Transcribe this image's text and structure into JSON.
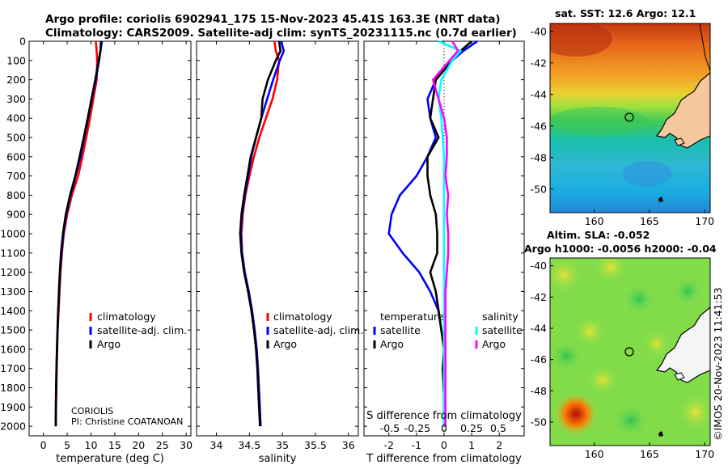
{
  "header": {
    "title_line1": "Argo profile: coriolis 6902941_175 15-Nov-2023 45.41S 163.3E (NRT data)",
    "title_line2": "Climatology: CARS2009. Satellite-adj clim: synTS_20231115.nc (0.7d earlier)"
  },
  "map_sst": {
    "title": "sat. SST: 12.6 Argo: 12.1"
  },
  "map_sla": {
    "title_line1": "Altim. SLA: -0.052",
    "title_line2": "Argo h1000: -0.0056 h2000: -0.04"
  },
  "stamp": "©IMOS 20-Nov-2023 11:41:53",
  "credits": {
    "line1": "CORIOLIS",
    "line2": "PI: Christine COATANOAN"
  },
  "colors": {
    "climatology": "#ff0000",
    "satellite": "#0000ff",
    "argo": "#000000",
    "sat_salinity": "#00ffff",
    "argo_salinity": "#ff00ff"
  },
  "chart_data": [
    {
      "type": "line",
      "name": "temperature",
      "xlabel": "temperature (deg C)",
      "xlim": [
        -3,
        31
      ],
      "xticks": [
        0,
        5,
        10,
        15,
        20,
        25,
        30
      ],
      "ylim": [
        2050,
        0
      ],
      "yticks": [
        0,
        100,
        200,
        300,
        400,
        500,
        600,
        700,
        800,
        900,
        1000,
        1100,
        1200,
        1300,
        1400,
        1500,
        1600,
        1700,
        1800,
        1900,
        2000
      ],
      "legend": [
        "climatology",
        "satellite-adj. clim.",
        "Argo"
      ],
      "series": [
        {
          "name": "climatology",
          "color": "#ff0000",
          "x": [
            11.0,
            11.2,
            11.3,
            11.2,
            10.5,
            9.8,
            9.0,
            8.2,
            7.3,
            6.0,
            5.0,
            4.3,
            3.9,
            3.6,
            3.4,
            3.2,
            3.0,
            2.9,
            2.8,
            2.7,
            2.6
          ],
          "y": [
            0,
            50,
            100,
            200,
            300,
            400,
            500,
            600,
            700,
            800,
            900,
            1000,
            1100,
            1200,
            1300,
            1400,
            1500,
            1600,
            1700,
            1850,
            2000
          ]
        },
        {
          "name": "satellite-adj. clim.",
          "color": "#0000ff",
          "x": [
            12.3,
            12.0,
            11.7,
            11.0,
            10.2,
            9.4,
            8.6,
            7.8,
            6.8,
            5.7,
            4.8,
            4.2,
            3.8,
            3.5,
            3.3,
            3.1,
            3.0,
            2.85,
            2.75,
            2.65,
            2.6
          ],
          "y": [
            0,
            50,
            100,
            200,
            300,
            400,
            500,
            600,
            700,
            800,
            900,
            1000,
            1100,
            1200,
            1300,
            1400,
            1500,
            1600,
            1700,
            1850,
            2000
          ]
        },
        {
          "name": "Argo",
          "color": "#000000",
          "x": [
            12.1,
            12.0,
            11.6,
            10.9,
            10.1,
            9.3,
            8.5,
            7.6,
            6.7,
            5.6,
            4.7,
            4.1,
            3.7,
            3.45,
            3.25,
            3.1,
            2.95,
            2.85,
            2.75,
            2.65,
            2.6
          ],
          "y": [
            0,
            50,
            100,
            200,
            300,
            400,
            500,
            600,
            700,
            800,
            900,
            1000,
            1100,
            1200,
            1300,
            1400,
            1500,
            1600,
            1700,
            1850,
            2000
          ]
        }
      ]
    },
    {
      "type": "line",
      "name": "salinity",
      "xlabel": "salinity",
      "xlim": [
        33.7,
        36.15
      ],
      "xticks": [
        34,
        34.5,
        35,
        35.5,
        36
      ],
      "ylim": [
        2050,
        0
      ],
      "legend": [
        "climatology",
        "satellite-adj. clim.",
        "Argo"
      ],
      "series": [
        {
          "name": "climatology",
          "color": "#ff0000",
          "x": [
            34.88,
            34.9,
            34.95,
            34.92,
            34.85,
            34.75,
            34.65,
            34.57,
            34.5,
            34.44,
            34.4,
            34.38,
            34.39,
            34.43,
            34.49,
            34.54,
            34.58,
            34.61,
            34.63,
            34.65,
            34.67
          ],
          "y": [
            0,
            50,
            100,
            200,
            300,
            400,
            500,
            600,
            700,
            800,
            900,
            1000,
            1100,
            1200,
            1300,
            1400,
            1500,
            1600,
            1700,
            1850,
            2000
          ]
        },
        {
          "name": "satellite-adj. clim.",
          "color": "#0000ff",
          "x": [
            34.98,
            35.02,
            34.96,
            34.86,
            34.77,
            34.68,
            34.6,
            34.53,
            34.48,
            34.43,
            34.39,
            34.37,
            34.39,
            34.43,
            34.49,
            34.54,
            34.58,
            34.61,
            34.63,
            34.65,
            34.67
          ],
          "y": [
            0,
            50,
            100,
            200,
            300,
            400,
            500,
            600,
            700,
            800,
            900,
            1000,
            1100,
            1200,
            1300,
            1400,
            1500,
            1600,
            1700,
            1850,
            2000
          ]
        },
        {
          "name": "Argo",
          "color": "#000000",
          "x": [
            34.95,
            34.97,
            34.9,
            34.78,
            34.7,
            34.68,
            34.6,
            34.52,
            34.47,
            34.42,
            34.38,
            34.36,
            34.38,
            34.42,
            34.48,
            34.53,
            34.57,
            34.6,
            34.62,
            34.64,
            34.66
          ],
          "y": [
            0,
            50,
            100,
            200,
            300,
            400,
            500,
            600,
            700,
            800,
            900,
            1000,
            1100,
            1200,
            1300,
            1400,
            1500,
            1600,
            1700,
            1850,
            2000
          ]
        }
      ]
    },
    {
      "type": "line",
      "name": "difference",
      "xlabel": "T difference from climatology",
      "xlabel_top": "S difference from climatology",
      "xlim": [
        -2.9,
        2.9
      ],
      "xticks": [
        -2,
        -1,
        0,
        1,
        2
      ],
      "xticks_top_labels": [
        "-0.5",
        "-0.25",
        "0",
        "0.25",
        "0.5"
      ],
      "ylim": [
        2050,
        0
      ],
      "legend_temperature": {
        "title": "temperature",
        "items": [
          "satellite",
          "Argo"
        ]
      },
      "legend_salinity": {
        "title": "salinity",
        "items": [
          "satellite",
          "Argo"
        ]
      },
      "series": [
        {
          "name": "satellite temperature",
          "color": "#0000ff",
          "x": [
            1.2,
            0.7,
            0.3,
            -0.3,
            -0.6,
            -0.5,
            -0.3,
            -0.6,
            -1.0,
            -1.6,
            -1.9,
            -2.0,
            -1.5,
            -0.9,
            -0.5,
            -0.2,
            -0.1,
            0.0,
            0.0,
            0.0,
            0.0
          ],
          "y": [
            0,
            50,
            100,
            200,
            300,
            400,
            500,
            600,
            700,
            800,
            900,
            1000,
            1100,
            1200,
            1300,
            1400,
            1500,
            1600,
            1700,
            1850,
            2000
          ]
        },
        {
          "name": "Argo temperature",
          "color": "#000000",
          "x": [
            1.0,
            0.6,
            0.3,
            -0.3,
            -0.4,
            -0.5,
            -0.2,
            -0.6,
            -0.6,
            -0.5,
            -0.3,
            -0.25,
            -0.25,
            -0.5,
            -0.3,
            -0.2,
            -0.1,
            0.0,
            -0.05,
            0.0,
            0.0
          ],
          "y": [
            0,
            50,
            100,
            200,
            300,
            400,
            500,
            600,
            700,
            800,
            900,
            1000,
            1100,
            1200,
            1300,
            1400,
            1500,
            1600,
            1700,
            1850,
            2000
          ]
        },
        {
          "name": "satellite salinity",
          "color": "#00ffff",
          "x": [
            -0.2,
            0.6,
            0.3,
            -0.1,
            -0.2,
            -0.1,
            -0.05,
            0.0,
            0.0,
            0.0,
            0.0,
            0.0,
            0.0,
            0.0,
            0.0,
            0.0,
            0.0,
            0.0,
            0.0,
            0.0,
            0.0
          ],
          "y": [
            0,
            50,
            100,
            200,
            300,
            400,
            500,
            600,
            700,
            800,
            900,
            1000,
            1100,
            1200,
            1300,
            1400,
            1500,
            1600,
            1700,
            1850,
            2000
          ]
        },
        {
          "name": "Argo salinity",
          "color": "#ff00ff",
          "x": [
            0.3,
            0.5,
            0.2,
            -0.4,
            -0.2,
            0.0,
            0.1,
            0.1,
            0.05,
            0.15,
            0.1,
            0.15,
            0.15,
            0.1,
            0.05,
            0.05,
            0.05,
            0.05,
            0.05,
            0.05,
            0.05
          ],
          "y": [
            0,
            50,
            100,
            200,
            300,
            400,
            500,
            600,
            700,
            800,
            900,
            1000,
            1100,
            1200,
            1300,
            1400,
            1500,
            1600,
            1700,
            1850,
            2000
          ]
        }
      ]
    },
    {
      "type": "heatmap",
      "name": "sst-map",
      "xticks": [
        160,
        165,
        170
      ],
      "yticks": [
        -40,
        -42,
        -44,
        -46,
        -48,
        -50
      ],
      "xlim": [
        156,
        170.5
      ],
      "ylim": [
        -51.5,
        -39.5
      ],
      "marker": {
        "lon": 163.3,
        "lat": -45.41
      }
    },
    {
      "type": "heatmap",
      "name": "sla-map",
      "xticks": [
        160,
        165,
        170
      ],
      "yticks": [
        -40,
        -42,
        -44,
        -46,
        -48,
        -50
      ],
      "xlim": [
        156,
        170.5
      ],
      "ylim": [
        -51.5,
        -39.5
      ],
      "marker": {
        "lon": 163.3,
        "lat": -45.41
      }
    }
  ]
}
